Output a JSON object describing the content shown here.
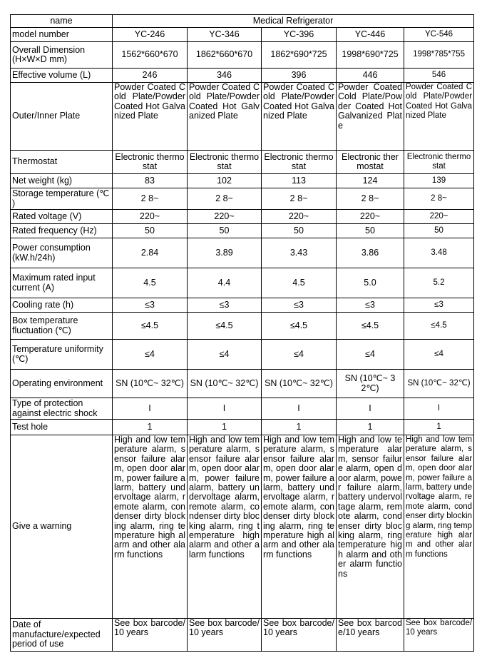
{
  "table": {
    "header": [
      "name",
      "Medical Refrigerator"
    ],
    "rows": [
      [
        "model number",
        "YC-246",
        "YC-346",
        "YC-396",
        "YC-446",
        "YC-546"
      ],
      [
        "Overall Dimension (H×W×D mm)",
        "1562*660*670",
        "1862*660*670",
        "1862*690*725",
        "1998*690*725",
        "1998*785*755"
      ],
      [
        "Effective volume (L)",
        "246",
        "346",
        "396",
        "446",
        "546"
      ],
      [
        "Outer/Inner Plate",
        "Powder Coated Cold Plate/PowderCoated Hot Galvanized Plate",
        "Powder Coated Cold Plate/PowderCoated Hot Galvanized Plate",
        "Powder Coated Cold Plate/PowderCoated Hot Galvanized Plate",
        "Powder Coated Cold Plate/Powder Coated Hot Galvanized Plate",
        "Powder Coated Cold Plate/Powder Coated Hot Galvanized Plate"
      ],
      [
        "Thermostat",
        "Electronic thermostat",
        "Electronic thermostat",
        "Electronic thermostat",
        "Electronic thermostat",
        "Electronic thermostat"
      ],
      [
        "Net weight (kg)",
        "83",
        "102",
        "113",
        "124",
        "139"
      ],
      [
        "Storage temperature (℃ )",
        "2 8~",
        "2 8~",
        "2 8~",
        "2 8~",
        "2 8~"
      ],
      [
        "Rated voltage (V)",
        "220~",
        "220~",
        "220~",
        "220~",
        "220~"
      ],
      [
        "Rated frequency (Hz)",
        "50",
        "50",
        "50",
        "50",
        "50"
      ],
      [
        "Power consumption (kW.h/24h)",
        "2.84",
        "3.89",
        "3.43",
        "3.86",
        "3.48"
      ],
      [
        "Maximum rated input current (A)",
        "4.5",
        "4.4",
        "4.5",
        "5.0",
        "5.2"
      ],
      [
        "Cooling rate (h)",
        "≤3",
        "≤3",
        "≤3",
        "≤3",
        "≤3"
      ],
      [
        "Box temperature fluctuation (℃)",
        "≤4.5",
        "≤4.5",
        "≤4.5",
        "≤4.5",
        "≤4.5"
      ],
      [
        "Temperature uniformity (℃)",
        "≤4",
        "≤4",
        "≤4",
        "≤4",
        "≤4"
      ],
      [
        "Operating environment",
        "SN (10℃~ 32℃)",
        "SN (10℃~ 32℃)",
        "SN (10℃~ 32℃)",
        "SN (10℃~ 32℃)",
        "SN (10℃~ 32℃)"
      ],
      [
        "Type of protection against electric shock",
        "I",
        "I",
        "I",
        "I",
        "I"
      ],
      [
        "Test hole",
        "1",
        "1",
        "1",
        "1",
        "1"
      ],
      [
        "Give a warning",
        "High and low temperature alarm, sensor failure alarm, open door alarm, power failure alarm, battery undervoltage alarm, remote alarm, condenser dirty blocking alarm, ring temperature high alarm and other alarm functions",
        "High and low temperature alarm, sensor failure alarm, open door alarm, power failure alarm, battery undervoltage alarm, remote alarm, condenser dirty blocking alarm, ring temperature high alarm and other alarm functions",
        "High and low temperature alarm, sensor failure alarm, open door alarm, power failure alarm, battery undervoltage alarm, remote alarm, condenser dirty blocking alarm, ring temperature high alarm and other alarm functions",
        "High and low temperature alarm, sensor failure alarm, open door alarm, power failure alarm, battery undervoltage alarm, remote alarm, condenser dirty blocking alarm, ring temperature high alarm and other alarm functions",
        "High and low temperature alarm, sensor failure alarm, open door alarm, power failure alarm, battery undervoltage alarm, remote alarm, condenser dirty blocking alarm, ring temperature high alarm and other alarm functions"
      ],
      [
        "Date of manufacture/expected period of use",
        "See box barcode/10 years",
        "See box barcode/10 years",
        "See box barcode/10 years",
        "See box barcode/10 years",
        "See box barcode/10 years"
      ]
    ]
  }
}
